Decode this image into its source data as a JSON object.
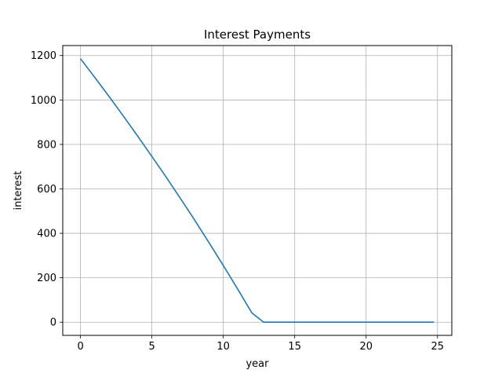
{
  "chart_data": {
    "type": "line",
    "title": "Interest Payments",
    "xlabel": "year",
    "ylabel": "interest",
    "xlim": [
      -1.24,
      26.0
    ],
    "ylim": [
      -59.3,
      1245
    ],
    "xticks": [
      0,
      5,
      10,
      15,
      20,
      25
    ],
    "yticks": [
      0,
      200,
      400,
      600,
      800,
      1000,
      1200
    ],
    "grid": true,
    "legend": "none",
    "colors": {
      "line": "#1f77b4",
      "grid": "#b0b0b0",
      "axes": "#000000",
      "background": "#ffffff"
    },
    "series": [
      {
        "x": [
          0,
          1,
          2,
          3,
          4,
          5,
          6,
          7,
          8,
          9,
          10,
          11,
          12,
          12.83,
          13,
          14,
          15,
          16,
          17,
          18,
          19,
          20,
          21,
          22,
          23,
          24,
          24.75
        ],
        "values": [
          1186,
          1102,
          1016,
          928,
          838,
          746,
          653,
          557,
          459,
          358,
          255,
          150,
          42,
          0,
          0,
          0,
          0,
          0,
          0,
          0,
          0,
          0,
          0,
          0,
          0,
          0,
          0
        ]
      }
    ]
  }
}
